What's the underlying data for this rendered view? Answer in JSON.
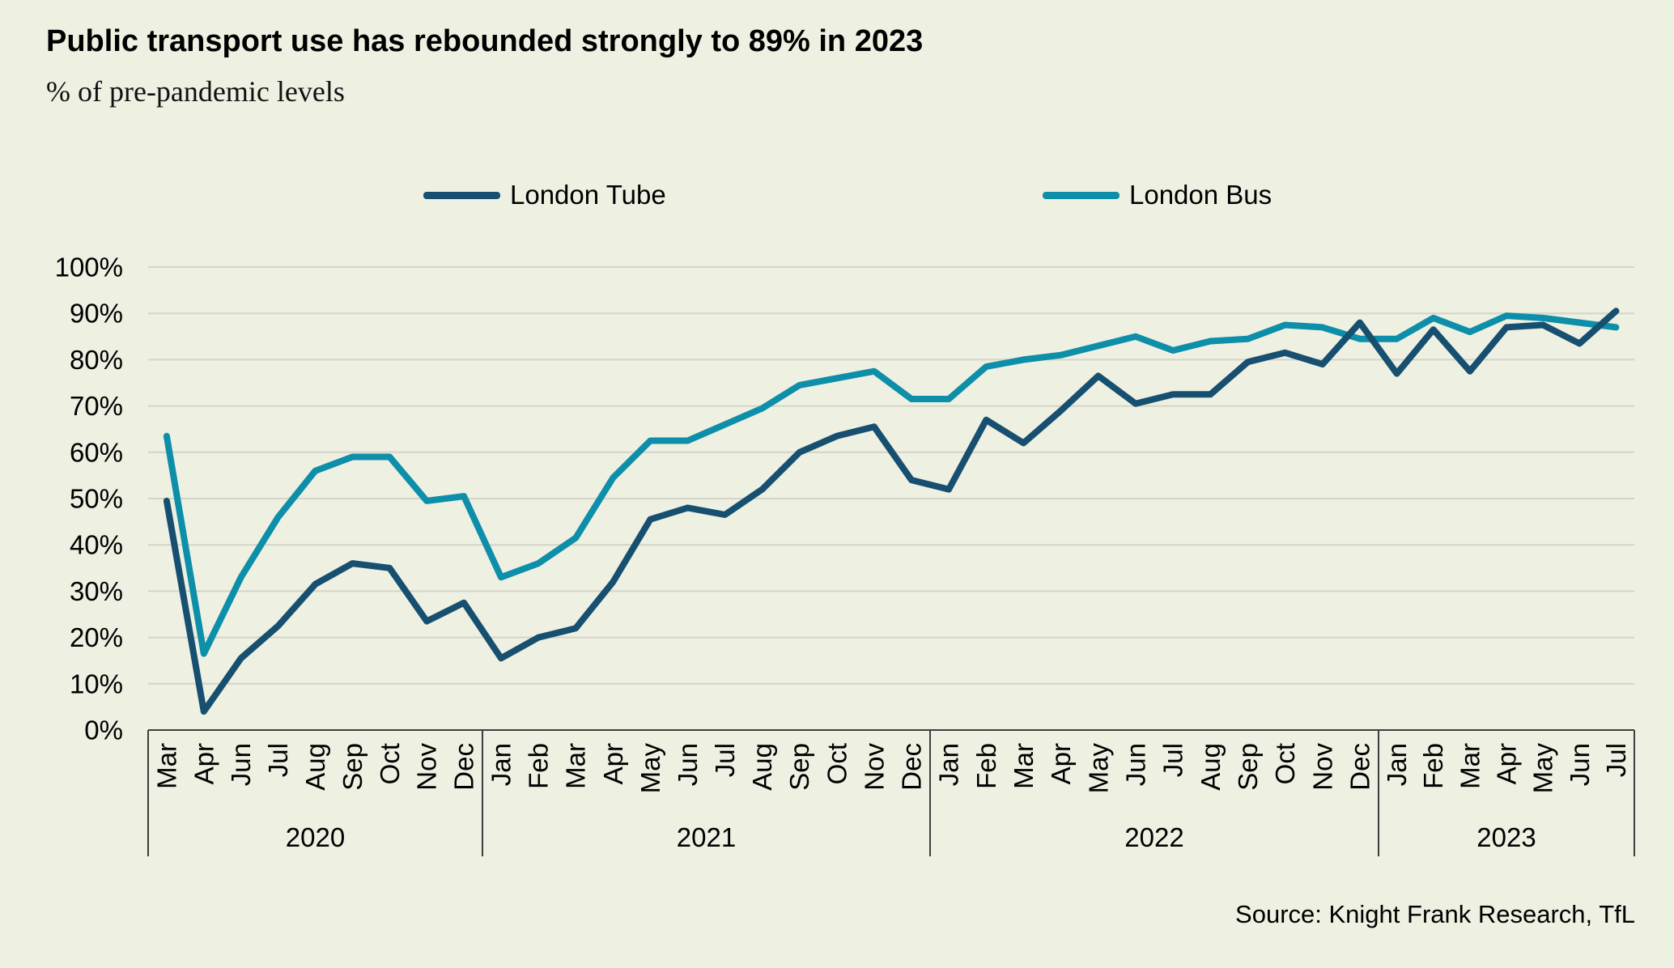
{
  "page": {
    "title": "Public transport use has rebounded strongly to 89% in 2023",
    "subtitle": "% of pre-pandemic levels",
    "source": "Source: Knight Frank Research, TfL"
  },
  "colors": {
    "background": "#eef0e2",
    "tube_line": "#174f70",
    "bus_line": "#0d8ea9",
    "gridline": "#d4d4ca",
    "axis_line": "#3d3d3d",
    "text": "#000000"
  },
  "chart_data": {
    "type": "line",
    "title": "Public transport use has rebounded strongly to 89% in 2023",
    "subtitle": "% of pre-pandemic levels",
    "xlabel": "",
    "ylabel": "% of pre-pandemic levels",
    "legend_position": "top",
    "grid": "horizontal",
    "y_axis": {
      "min": 0,
      "max": 100,
      "tick_step": 10,
      "tick_labels": [
        "0%",
        "10%",
        "20%",
        "30%",
        "40%",
        "50%",
        "60%",
        "70%",
        "80%",
        "90%",
        "100%"
      ]
    },
    "x_groups": [
      {
        "year": "2020",
        "months": [
          "Mar",
          "Apr",
          "Jun",
          "Jul",
          "Aug",
          "Sep",
          "Oct",
          "Nov",
          "Dec"
        ]
      },
      {
        "year": "2021",
        "months": [
          "Jan",
          "Feb",
          "Mar",
          "Apr",
          "May",
          "Jun",
          "Jul",
          "Aug",
          "Sep",
          "Oct",
          "Nov",
          "Dec"
        ]
      },
      {
        "year": "2022",
        "months": [
          "Jan",
          "Feb",
          "Mar",
          "Apr",
          "May",
          "Jun",
          "Jul",
          "Aug",
          "Sep",
          "Oct",
          "Nov",
          "Dec"
        ]
      },
      {
        "year": "2023",
        "months": [
          "Jan",
          "Feb",
          "Mar",
          "Apr",
          "May",
          "Jun",
          "Jul"
        ]
      }
    ],
    "series": [
      {
        "name": "London Tube",
        "color": "#174f70",
        "values": [
          [
            49.5,
            4,
            15.5,
            22.5,
            31.5,
            36,
            35,
            23.5,
            27.5
          ],
          [
            15.5,
            20,
            22,
            32,
            45.5,
            48,
            46.5,
            52,
            60,
            63.5,
            65.5,
            54
          ],
          [
            52,
            67,
            62,
            69,
            76.5,
            70.5,
            72.5,
            72.5,
            79.5,
            81.5,
            79,
            88
          ],
          [
            77,
            86.5,
            77.5,
            87,
            87.5,
            83.5,
            90.5
          ]
        ]
      },
      {
        "name": "London Bus",
        "color": "#0d8ea9",
        "values": [
          [
            63.5,
            16.5,
            33,
            46,
            56,
            59,
            59,
            49.5,
            50.5
          ],
          [
            33,
            36,
            41.5,
            54.5,
            62.5,
            62.5,
            66,
            69.5,
            74.5,
            76,
            77.5,
            71.5
          ],
          [
            71.5,
            78.5,
            80,
            81,
            83,
            85,
            82,
            84,
            84.5,
            87.5,
            87,
            84.5
          ],
          [
            84.5,
            89,
            86,
            89.5,
            89,
            88,
            87
          ]
        ]
      }
    ]
  }
}
